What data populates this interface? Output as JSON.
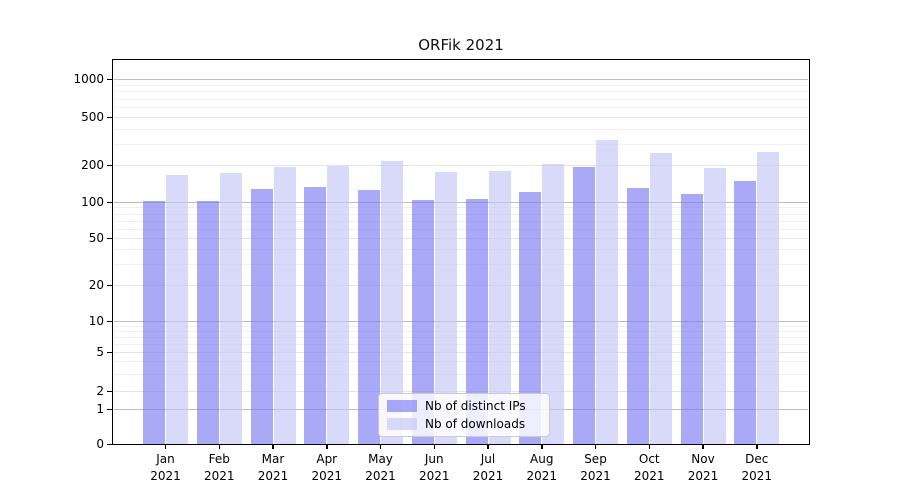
{
  "title": "ORFik 2021",
  "colors": {
    "bar_dark": "rgba(124,124,243,0.66)",
    "bar_dark_hex": "#aaaaf8",
    "bar_light": "rgba(197,197,248,0.66)",
    "bar_light_hex": "#d8d8fa",
    "grid_major": "#bdbdbd",
    "grid_medium": "#e4e4e4",
    "grid_minor": "#f0f0f0"
  },
  "legend": {
    "items": [
      {
        "label": "Nb of distinct IPs",
        "swatch": "dark"
      },
      {
        "label": "Nb of downloads",
        "swatch": "light"
      }
    ]
  },
  "y_axis": {
    "tick_labels": [
      "1000",
      "500",
      "200",
      "100",
      "50",
      "20",
      "10",
      "5",
      "2",
      "1",
      "0"
    ],
    "tick_values": [
      1000,
      500,
      200,
      100,
      50,
      20,
      10,
      5,
      2,
      1,
      0
    ]
  },
  "x_axis": {
    "months": [
      "Jan",
      "Feb",
      "Mar",
      "Apr",
      "May",
      "Jun",
      "Jul",
      "Aug",
      "Sep",
      "Oct",
      "Nov",
      "Dec"
    ],
    "year": "2021"
  },
  "chart_data": {
    "type": "bar",
    "title": "ORFik 2021",
    "categories": [
      "Jan 2021",
      "Feb 2021",
      "Mar 2021",
      "Apr 2021",
      "May 2021",
      "Jun 2021",
      "Jul 2021",
      "Aug 2021",
      "Sep 2021",
      "Oct 2021",
      "Nov 2021",
      "Dec 2021"
    ],
    "series": [
      {
        "name": "Nb of distinct IPs",
        "values": [
          101,
          102,
          127,
          132,
          125,
          104,
          105,
          120,
          194,
          131,
          116,
          148
        ]
      },
      {
        "name": "Nb of downloads",
        "values": [
          166,
          171,
          194,
          197,
          215,
          175,
          180,
          205,
          325,
          250,
          188,
          255
        ]
      }
    ],
    "xlabel": "",
    "ylabel": "",
    "yscale": "symlog",
    "y_ticks": [
      0,
      1,
      2,
      5,
      10,
      20,
      50,
      100,
      200,
      500,
      1000
    ],
    "ylim": [
      0,
      1400
    ],
    "grid": true,
    "legend_position": "lower center"
  }
}
